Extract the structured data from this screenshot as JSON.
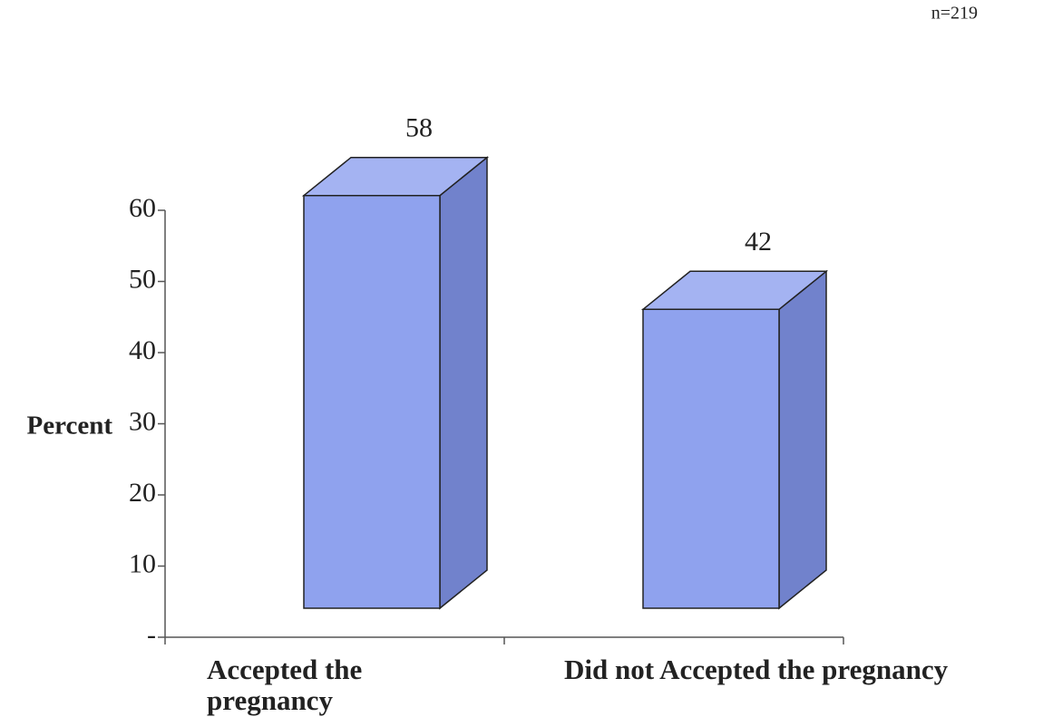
{
  "chart_data": {
    "type": "bar3d",
    "annotation": "n=219",
    "ylabel": "Percent",
    "categories": [
      "Accepted the pregnancy",
      "Did not Accepted the pregnancy"
    ],
    "values": [
      58,
      42
    ],
    "color": "#8fa2ee",
    "ylim": [
      0,
      60
    ],
    "yticks": [
      {
        "value": 0,
        "label": "-"
      },
      10,
      20,
      30,
      40,
      50,
      60
    ]
  }
}
